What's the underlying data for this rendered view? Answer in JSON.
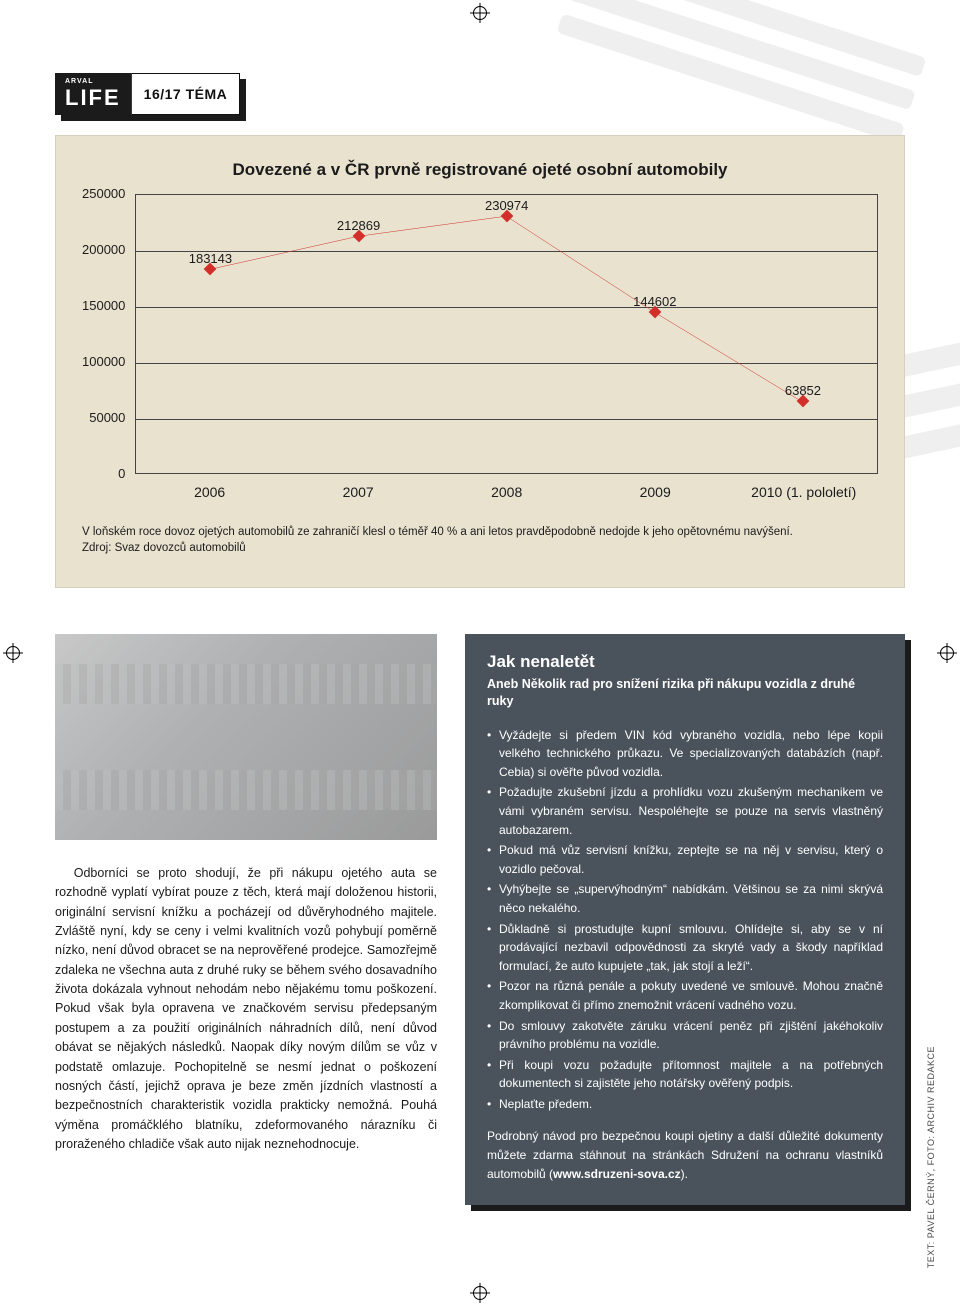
{
  "header": {
    "arval": "ARVAL",
    "life": "LIFE",
    "section": "16/17 TÉMA"
  },
  "chart": {
    "type": "line",
    "title": "Dovezené a v ČR prvně registrované ojeté osobní automobily",
    "title_fontsize": 17,
    "background_color": "#e8e2cf",
    "grid_color": "#444444",
    "line_color": "#d22f2a",
    "marker": "diamond",
    "marker_color": "#d22f2a",
    "marker_size": 9,
    "line_width": 1.4,
    "ylim": [
      0,
      250000
    ],
    "ytick_step": 50000,
    "yticks": [
      "250000",
      "200000",
      "150000",
      "100000",
      "50000",
      "0"
    ],
    "categories": [
      "2006",
      "2007",
      "2008",
      "2009",
      "2010 (1. pololetí)"
    ],
    "values": [
      183143,
      212869,
      230974,
      144602,
      63852
    ],
    "label_fontsize": 13,
    "caption": "V loňském roce dovoz ojetých automobilů ze zahraničí klesl o téměř 40 % a ani letos pravděpodobně nedojde k jeho opětovnému navýšení.",
    "source": "Zdroj: Svaz dovozců automobilů"
  },
  "article": {
    "body": "Odborníci se proto shodují, že při nákupu ojetého auta se rozhodně vyplatí vybírat pouze z těch, která mají doloženou historii, originální servisní knížku a pocházejí od důvěryhodného majitele. Zvláště nyní, kdy se ceny i velmi kvalitních vozů pohybují poměrně nízko, není důvod obracet se na neprověřené prodejce. Samozřejmě zdaleka ne všechna auta z druhé ruky se během svého dosavadního života dokázala vyhnout nehodám nebo nějakému tomu poškození. Pokud však byla opravena ve značkovém servisu předepsaným postupem a za použití originálních náhradních dílů, není důvod obávat se nějakých následků. Naopak díky novým dílům se vůz v podstatě omlazuje. Pochopitelně se nesmí jednat o poškození nosných částí, jejichž oprava je beze změn jízdních vlastností a bezpečnostních charakteristik vozidla prakticky nemožná. Pouhá výměna promáčklého blatníku, zdeformovaného nárazníku či proraženého chladiče však auto nijak neznehodnocuje.",
    "credit": "TEXT: PAVEL ČERNÝ, FOTO: ARCHIV REDAKCE"
  },
  "infobox": {
    "background_color": "#4a525b",
    "shadow_color": "#1b1b1b",
    "text_color": "#ffffff",
    "title": "Jak nenaletět",
    "subtitle": "Aneb Několik rad pro snížení rizika při nákupu vozidla z druhé ruky",
    "bullets": [
      "Vyžádejte si předem VIN kód vybraného vozidla, nebo lépe kopii velkého technického průkazu. Ve specializovaných databázích (např. Cebia) si ověřte původ vozidla.",
      "Požadujte zkušební jízdu a prohlídku vozu zkušeným mechanikem ve vámi vybraném servisu. Nespoléhejte se pouze na servis vlastněný autobazarem.",
      "Pokud má vůz servisní knížku, zeptejte se na něj v servisu, který o vozidlo pečoval.",
      "Vyhýbejte se „supervýhodným“ nabídkám. Většinou se za nimi skrývá něco nekalého.",
      "Důkladně si prostudujte kupní smlouvu. Ohlídejte si, aby se v ní prodávající nezbavil odpovědnosti za skryté vady a škody například formulací, že auto kupujete „tak, jak stojí a leží“.",
      "Pozor na různá penále a pokuty uvedené ve smlouvě. Mohou značně zkomplikovat či přímo znemožnit vrácení vadného vozu.",
      "Do smlouvy zakotvěte záruku vrácení peněz při zjištění jakéhokoliv právního problému na vozidle.",
      "Při koupi vozu požadujte přítomnost majitele a na potřebných dokumentech si zajistěte jeho notářsky ověřený podpis.",
      "Neplaťte předem."
    ],
    "footer_pre": "Podrobný návod pro bezpečnou koupi ojetiny a další důležité dokumenty můžete zdarma stáhnout na stránkách Sdružení na ochranu vlastníků automobilů (",
    "footer_link": "www.sdruzeni-sova.cz",
    "footer_post": ")."
  }
}
